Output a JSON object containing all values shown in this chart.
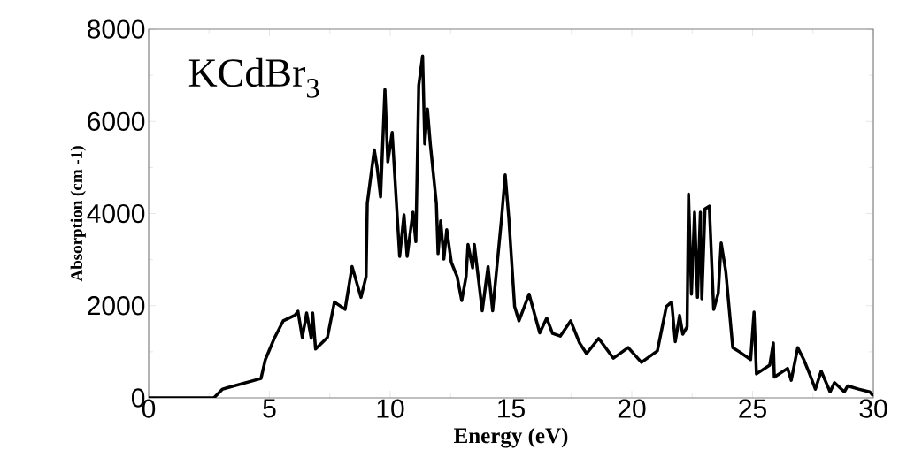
{
  "chart_data": {
    "type": "line",
    "xlabel": "Energy (eV)",
    "ylabel": "Absorption (cm -1)",
    "annotations": [
      "KCdBr$_{3}$"
    ],
    "xlim": [
      0,
      30
    ],
    "ylim": [
      0,
      8000
    ],
    "xticks": [
      0,
      5,
      10,
      15,
      20,
      25,
      30
    ],
    "yticks": [
      0,
      2000,
      4000,
      6000,
      8000
    ],
    "color": "#000000",
    "x": [
      0,
      2.7,
      3.06,
      4.65,
      4.83,
      5.2,
      5.57,
      6.05,
      6.18,
      6.36,
      6.54,
      6.73,
      6.79,
      6.91,
      7.4,
      7.69,
      8.13,
      8.42,
      8.79,
      9.0,
      9.05,
      9.34,
      9.46,
      9.6,
      9.78,
      9.9,
      10.08,
      10.39,
      10.57,
      10.7,
      10.94,
      11.06,
      11.18,
      11.34,
      11.43,
      11.54,
      11.66,
      11.91,
      11.98,
      12.09,
      12.22,
      12.34,
      12.53,
      12.77,
      12.96,
      13.14,
      13.22,
      13.41,
      13.48,
      13.81,
      14.05,
      14.24,
      14.6,
      14.76,
      14.91,
      15.15,
      15.33,
      15.75,
      16.19,
      16.48,
      16.72,
      17.04,
      17.47,
      17.84,
      18.13,
      18.63,
      19.24,
      19.85,
      20.4,
      21.06,
      21.43,
      21.65,
      21.8,
      21.98,
      22.11,
      22.29,
      22.35,
      22.47,
      22.6,
      22.72,
      22.84,
      22.9,
      23.03,
      23.21,
      23.39,
      23.58,
      23.7,
      23.89,
      24.18,
      24.45,
      24.92,
      25.06,
      25.16,
      25.71,
      25.86,
      25.9,
      26.45,
      26.6,
      26.87,
      27.12,
      27.36,
      27.6,
      27.84,
      28.21,
      28.39,
      28.8,
      28.94,
      29.39,
      29.85,
      30
    ],
    "values": [
      0,
      0,
      190,
      420,
      830,
      1290,
      1670,
      1790,
      1880,
      1310,
      1840,
      1290,
      1840,
      1060,
      1310,
      2080,
      1920,
      2850,
      2180,
      2630,
      4220,
      5380,
      4990,
      4360,
      6690,
      5120,
      5760,
      3070,
      3970,
      3070,
      4030,
      3390,
      6780,
      7420,
      5510,
      6270,
      5510,
      4220,
      3130,
      3840,
      3010,
      3650,
      2940,
      2630,
      2110,
      2630,
      3330,
      2820,
      3330,
      1890,
      2850,
      1890,
      3840,
      4840,
      3900,
      1980,
      1670,
      2250,
      1410,
      1730,
      1400,
      1340,
      1670,
      1190,
      960,
      1290,
      860,
      1090,
      770,
      1020,
      1980,
      2080,
      1220,
      1790,
      1380,
      1540,
      4420,
      2250,
      4030,
      2180,
      4030,
      2150,
      4100,
      4160,
      1920,
      2270,
      3360,
      2750,
      1090,
      1000,
      830,
      1860,
      520,
      710,
      1190,
      450,
      640,
      380,
      1090,
      830,
      520,
      190,
      580,
      130,
      330,
      130,
      260,
      190,
      130,
      40
    ]
  }
}
